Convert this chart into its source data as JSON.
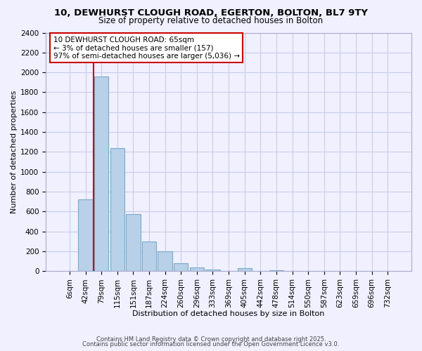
{
  "title_line1": "10, DEWHURST CLOUGH ROAD, EGERTON, BOLTON, BL7 9TY",
  "title_line2": "Size of property relative to detached houses in Bolton",
  "xlabel": "Distribution of detached houses by size in Bolton",
  "ylabel": "Number of detached properties",
  "bar_labels": [
    "6sqm",
    "42sqm",
    "79sqm",
    "115sqm",
    "151sqm",
    "187sqm",
    "224sqm",
    "260sqm",
    "296sqm",
    "333sqm",
    "369sqm",
    "405sqm",
    "442sqm",
    "478sqm",
    "514sqm",
    "550sqm",
    "587sqm",
    "623sqm",
    "659sqm",
    "696sqm",
    "732sqm"
  ],
  "bar_values": [
    0,
    720,
    1960,
    1240,
    575,
    300,
    200,
    80,
    40,
    15,
    0,
    35,
    0,
    10,
    0,
    0,
    0,
    0,
    0,
    0,
    0
  ],
  "bar_color": "#b8d0e8",
  "bar_edge_color": "#7aaacb",
  "vline_color": "#cc0000",
  "vline_pos": 1.5,
  "ylim": [
    0,
    2400
  ],
  "yticks": [
    0,
    200,
    400,
    600,
    800,
    1000,
    1200,
    1400,
    1600,
    1800,
    2000,
    2200,
    2400
  ],
  "annotation_line1": "10 DEWHURST CLOUGH ROAD: 65sqm",
  "annotation_line2": "← 3% of detached houses are smaller (157)",
  "annotation_line3": "97% of semi-detached houses are larger (5,036) →",
  "footer_line1": "Contains HM Land Registry data © Crown copyright and database right 2025.",
  "footer_line2": "Contains public sector information licensed under the Open Government Licence v3.0.",
  "background_color": "#f0f0ff",
  "grid_color": "#c8cce8",
  "title_fontsize": 9.5,
  "subtitle_fontsize": 8.5,
  "axis_label_fontsize": 8,
  "tick_fontsize": 7.5,
  "annotation_fontsize": 7.5,
  "footer_fontsize": 6
}
